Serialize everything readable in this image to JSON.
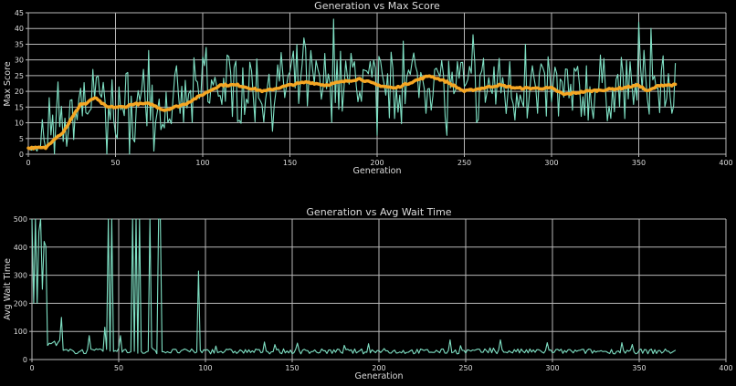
{
  "chart_data": [
    {
      "type": "line",
      "title": "Generation vs Max Score",
      "xlabel": "Generation",
      "ylabel": "Max Score",
      "xlim": [
        0,
        400
      ],
      "ylim": [
        0,
        45
      ],
      "xticks": [
        0,
        50,
        100,
        150,
        200,
        250,
        300,
        350,
        400
      ],
      "yticks": [
        0,
        5,
        10,
        15,
        20,
        25,
        30,
        35,
        40,
        45
      ],
      "grid": true,
      "series": [
        {
          "name": "max_score",
          "color": "#7fe0c4",
          "x_range": [
            0,
            371
          ],
          "description": "Noisy per-generation max score; ~2 at start, rising to 10-25 band by gen 30, fluctuating 5-43 afterwards",
          "key_points": [
            [
              0,
              2
            ],
            [
              5,
              1
            ],
            [
              8,
              11
            ],
            [
              12,
              18
            ],
            [
              17,
              23
            ],
            [
              30,
              21
            ],
            [
              37,
              27
            ],
            [
              45,
              0
            ],
            [
              58,
              0
            ],
            [
              66,
              27
            ],
            [
              69,
              33
            ],
            [
              72,
              1
            ],
            [
              100,
              31
            ],
            [
              102,
              34
            ],
            [
              117,
              12
            ],
            [
              158,
              37
            ],
            [
              175,
              43
            ],
            [
              200,
              6
            ],
            [
              215,
              36
            ],
            [
              240,
              6
            ],
            [
              255,
              38
            ],
            [
              285,
              35
            ],
            [
              292,
              13
            ],
            [
              350,
              42
            ],
            [
              357,
              40
            ],
            [
              369,
              13
            ],
            [
              371,
              29
            ]
          ]
        },
        {
          "name": "moving_average",
          "color": "#f5a623",
          "x_range": [
            0,
            371
          ],
          "key_points": [
            [
              0,
              2
            ],
            [
              10,
              2
            ],
            [
              15,
              5
            ],
            [
              20,
              7
            ],
            [
              30,
              16
            ],
            [
              33,
              16
            ],
            [
              38,
              18
            ],
            [
              45,
              15
            ],
            [
              55,
              15
            ],
            [
              60,
              16
            ],
            [
              70,
              16
            ],
            [
              78,
              14
            ],
            [
              90,
              16
            ],
            [
              100,
              19
            ],
            [
              110,
              22
            ],
            [
              120,
              22
            ],
            [
              135,
              20
            ],
            [
              150,
              22
            ],
            [
              160,
              23
            ],
            [
              170,
              22
            ],
            [
              190,
              24
            ],
            [
              200,
              22
            ],
            [
              210,
              21
            ],
            [
              220,
              23
            ],
            [
              230,
              25
            ],
            [
              240,
              23
            ],
            [
              250,
              20
            ],
            [
              270,
              22
            ],
            [
              280,
              21
            ],
            [
              290,
              21
            ],
            [
              300,
              21
            ],
            [
              307,
              19
            ],
            [
              320,
              20
            ],
            [
              340,
              21
            ],
            [
              350,
              22
            ],
            [
              355,
              20
            ],
            [
              362,
              22
            ],
            [
              371,
              22
            ]
          ]
        }
      ]
    },
    {
      "type": "line",
      "title": "Generation vs Avg Wait Time",
      "xlabel": "Generation",
      "ylabel": "Avg Wait Time",
      "xlim": [
        0,
        400
      ],
      "ylim": [
        0,
        500
      ],
      "xticks": [
        0,
        50,
        100,
        150,
        200,
        250,
        300,
        350,
        400
      ],
      "yticks": [
        0,
        100,
        200,
        300,
        400,
        500
      ],
      "grid": true,
      "series": [
        {
          "name": "avg_wait_time",
          "color": "#7fe0c4",
          "x_range": [
            0,
            371
          ],
          "description": "Very large (clipped >500) values in early generations, then settles to ~20-40 with small spikes",
          "key_points": [
            [
              0,
              500
            ],
            [
              1,
              200
            ],
            [
              2,
              500
            ],
            [
              3,
              200
            ],
            [
              5,
              500
            ],
            [
              6,
              250
            ],
            [
              7,
              420
            ],
            [
              9,
              50
            ],
            [
              17,
              150
            ],
            [
              33,
              85
            ],
            [
              42,
              115
            ],
            [
              44,
              500
            ],
            [
              46,
              500
            ],
            [
              51,
              85
            ],
            [
              58,
              500
            ],
            [
              60,
              500
            ],
            [
              62,
              500
            ],
            [
              68,
              500
            ],
            [
              73,
              500
            ],
            [
              74,
              500
            ],
            [
              96,
              315
            ],
            [
              241,
              70
            ],
            [
              270,
              70
            ],
            [
              297,
              60
            ],
            [
              340,
              60
            ],
            [
              370,
              30
            ]
          ]
        }
      ]
    }
  ],
  "plots": {
    "top": {
      "title": "Generation vs Max Score",
      "xlabel": "Generation",
      "ylabel": "Max Score",
      "xtick_labels": [
        "0",
        "50",
        "100",
        "150",
        "200",
        "250",
        "300",
        "350",
        "400"
      ],
      "ytick_labels": [
        "0",
        "5",
        "10",
        "15",
        "20",
        "25",
        "30",
        "35",
        "40",
        "45"
      ]
    },
    "bottom": {
      "title": "Generation vs Avg Wait Time",
      "xlabel": "Generation",
      "ylabel": "Avg Wait Time",
      "xtick_labels": [
        "0",
        "50",
        "100",
        "150",
        "200",
        "250",
        "300",
        "350",
        "400"
      ],
      "ytick_labels": [
        "0",
        "100",
        "200",
        "300",
        "400",
        "500"
      ]
    }
  },
  "colors": {
    "background": "#000000",
    "grid": "#b8b8b8",
    "line_primary": "#7fe0c4",
    "line_average": "#f5a623",
    "text": "#dcdcdc"
  }
}
